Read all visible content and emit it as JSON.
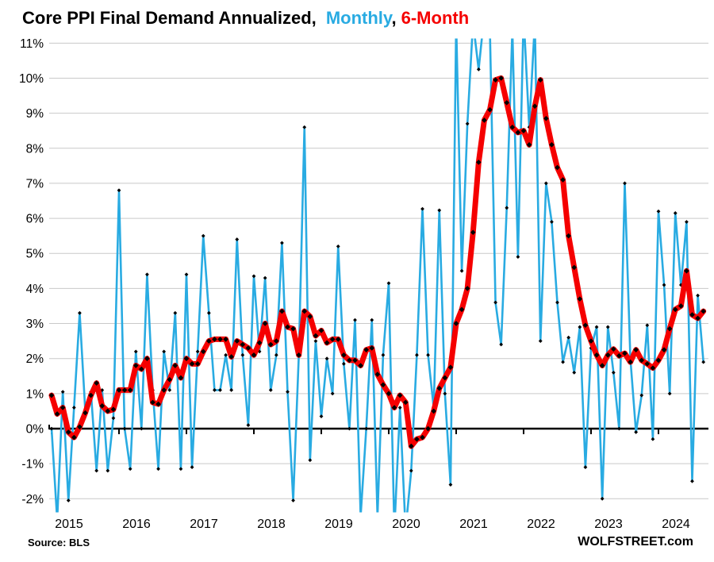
{
  "title": {
    "black": "Core PPI Final Demand Annualized,",
    "monthly": "Monthly",
    "comma": ",",
    "six_month": "6-Month"
  },
  "footer": {
    "source": "Source: BLS",
    "watermark": "WOLFSTREET.com"
  },
  "colors": {
    "monthly_line": "#29ABE2",
    "six_month_line": "#F50000",
    "marker": "#000000",
    "grid": "#C9C9C9",
    "zero_axis": "#000000",
    "text": "#000000"
  },
  "chart_data": {
    "type": "line",
    "title": "Core PPI Final Demand Annualized, Monthly, 6-Month",
    "xlabel": "",
    "ylabel": "",
    "x_start": "2015-01",
    "x_end": "2024-09",
    "x_tick_labels": [
      "2015",
      "2016",
      "2017",
      "2018",
      "2019",
      "2020",
      "2021",
      "2022",
      "2023",
      "2024"
    ],
    "y_ticks": [
      {
        "v": 11,
        "label": "11%"
      },
      {
        "v": 10,
        "label": "10%"
      },
      {
        "v": 9,
        "label": "9%"
      },
      {
        "v": 8,
        "label": "8%"
      },
      {
        "v": 7,
        "label": "7%"
      },
      {
        "v": 6,
        "label": "6%"
      },
      {
        "v": 5,
        "label": "5%"
      },
      {
        "v": 4,
        "label": "4%"
      },
      {
        "v": 3,
        "label": "3%"
      },
      {
        "v": 2,
        "label": "2%"
      },
      {
        "v": 1,
        "label": "1%"
      },
      {
        "v": 0,
        "label": "0%"
      },
      {
        "v": -1,
        "label": "-1%"
      },
      {
        "v": -2,
        "label": "-2%"
      }
    ],
    "ylim": [
      -2,
      11
    ],
    "grid": "horizontal",
    "legend_position": "in-title",
    "series": [
      {
        "name": "Monthly",
        "color_key": "monthly_line",
        "values": [
          0.0,
          -2.6,
          1.05,
          -2.05,
          0.6,
          3.3,
          0.5,
          1.05,
          -1.2,
          1.1,
          -1.2,
          0.3,
          6.8,
          0.0,
          -1.15,
          2.2,
          0.0,
          4.4,
          1.1,
          -1.15,
          2.2,
          1.1,
          3.3,
          -1.15,
          4.4,
          -1.1,
          2.2,
          5.5,
          3.3,
          1.1,
          1.1,
          2.1,
          1.1,
          5.4,
          2.1,
          0.1,
          4.35,
          2.2,
          4.3,
          1.1,
          2.1,
          5.3,
          1.05,
          -2.05,
          2.1,
          8.6,
          -0.9,
          2.5,
          0.35,
          2.0,
          1.0,
          5.2,
          1.85,
          0.0,
          3.1,
          -2.5,
          0.0,
          3.1,
          -2.5,
          2.1,
          4.15,
          -2.9,
          0.6,
          -2.9,
          -1.2,
          2.1,
          6.27,
          2.1,
          0.6,
          6.23,
          1.0,
          -1.6,
          11.6,
          4.5,
          8.7,
          11.6,
          10.25,
          11.8,
          11.4,
          3.6,
          2.4,
          6.3,
          11.4,
          4.9,
          11.8,
          8.6,
          11.6,
          2.5,
          7.0,
          5.9,
          3.6,
          1.9,
          2.6,
          1.6,
          2.9,
          -1.1,
          2.3,
          2.9,
          -2.0,
          2.9,
          1.6,
          0.0,
          7.0,
          2.0,
          -0.1,
          0.95,
          2.95,
          -0.3,
          6.2,
          4.1,
          1.0,
          6.15,
          4.1,
          5.9,
          -1.5,
          3.8,
          1.9
        ]
      },
      {
        "name": "6-Month",
        "color_key": "six_month_line",
        "values": [
          0.95,
          0.42,
          0.6,
          -0.1,
          -0.25,
          0.05,
          0.45,
          0.95,
          1.3,
          0.65,
          0.5,
          0.55,
          1.1,
          1.1,
          1.1,
          1.8,
          1.7,
          2.0,
          0.75,
          0.7,
          1.1,
          1.4,
          1.8,
          1.45,
          2.0,
          1.85,
          1.85,
          2.2,
          2.5,
          2.55,
          2.55,
          2.55,
          2.05,
          2.5,
          2.4,
          2.3,
          2.1,
          2.45,
          3.0,
          2.4,
          2.5,
          3.35,
          2.9,
          2.85,
          2.1,
          3.35,
          3.2,
          2.65,
          2.8,
          2.45,
          2.55,
          2.55,
          2.1,
          1.95,
          1.95,
          1.8,
          2.25,
          2.3,
          1.55,
          1.25,
          1.0,
          0.6,
          0.95,
          0.75,
          -0.5,
          -0.3,
          -0.25,
          0.0,
          0.5,
          1.15,
          1.45,
          1.75,
          3.0,
          3.4,
          4.0,
          5.6,
          7.6,
          8.8,
          9.1,
          9.95,
          10.0,
          9.3,
          8.6,
          8.45,
          8.5,
          8.1,
          9.2,
          9.95,
          8.85,
          8.1,
          7.45,
          7.1,
          5.5,
          4.6,
          3.7,
          2.95,
          2.5,
          2.1,
          1.8,
          2.1,
          2.27,
          2.08,
          2.15,
          1.9,
          2.25,
          1.95,
          1.85,
          1.73,
          1.95,
          2.25,
          2.85,
          3.4,
          3.5,
          4.5,
          3.25,
          3.15,
          3.35
        ]
      }
    ]
  }
}
